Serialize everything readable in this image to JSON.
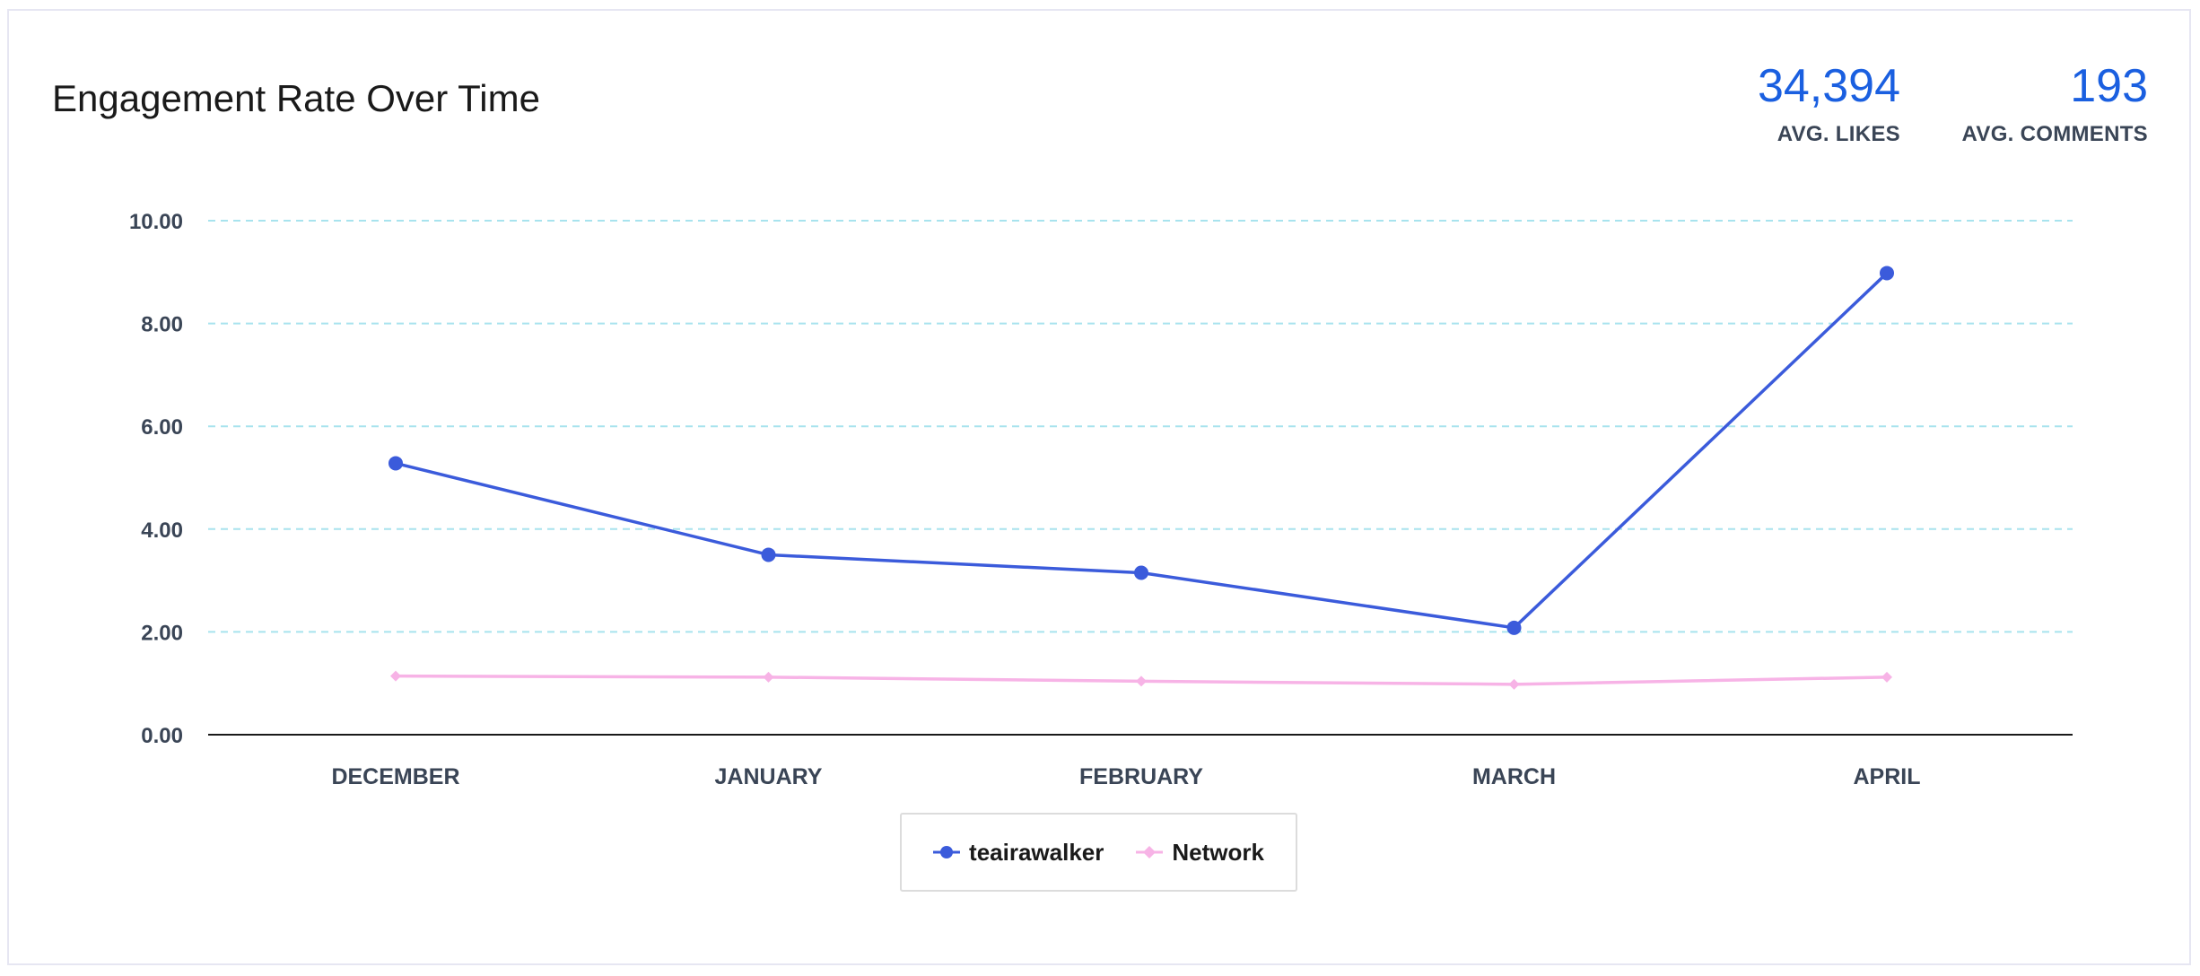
{
  "header": {
    "title": "Engagement Rate Over Time"
  },
  "stats": {
    "likes": {
      "value": "34,394",
      "label": "AVG. LIKES"
    },
    "comments": {
      "value": "193",
      "label": "AVG. COMMENTS"
    }
  },
  "colors": {
    "series_primary": "#3b5bdb",
    "series_network": "#f7b3e6",
    "stat_value": "#1a5fe0",
    "grid": "#a8e3ee"
  },
  "chart_data": {
    "type": "line",
    "title": "Engagement Rate Over Time",
    "categories": [
      "DECEMBER",
      "JANUARY",
      "FEBRUARY",
      "MARCH",
      "APRIL"
    ],
    "yticks": [
      "0.00",
      "2.00",
      "4.00",
      "6.00",
      "8.00",
      "10.00"
    ],
    "ylim": [
      0,
      10
    ],
    "grid": true,
    "legend_position": "bottom-center",
    "series": [
      {
        "name": "teairawalker",
        "marker": "circle",
        "values": [
          5.28,
          3.5,
          3.15,
          2.08,
          8.98
        ]
      },
      {
        "name": "Network",
        "marker": "diamond",
        "values": [
          1.14,
          1.12,
          1.04,
          0.98,
          1.12
        ]
      }
    ]
  }
}
